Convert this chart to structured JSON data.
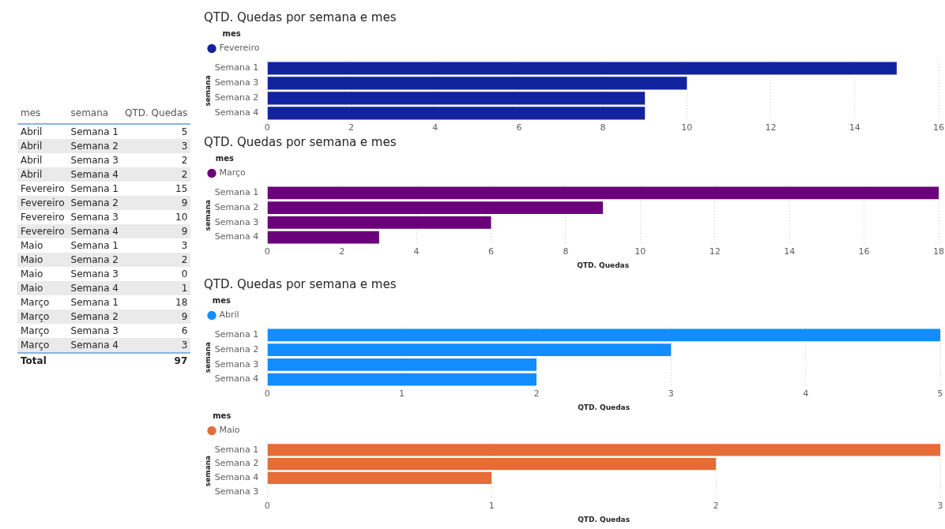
{
  "chart_data": [
    {
      "type": "other",
      "annotations": [
        "mes",
        "semana",
        "QTD. Quedas",
        "Abril",
        "Semana 1",
        "5",
        "Abril",
        "Semana 2",
        "3",
        "Abril",
        "Semana 3",
        "2",
        "Abril",
        "Semana 4",
        "2",
        "Fevereiro",
        "Semana 1",
        "15",
        "Fevereiro",
        "Semana 2",
        "9",
        "Fevereiro",
        "Semana 3",
        "10",
        "Fevereiro",
        "Semana 4",
        "9",
        "Maio",
        "Semana 1",
        "3",
        "Maio",
        "Semana 2",
        "2",
        "Maio",
        "Semana 3",
        "0",
        "Maio",
        "Semana 4",
        "1",
        "Março",
        "Semana 1",
        "18",
        "Março",
        "Semana 2",
        "9",
        "Março",
        "Semana 3",
        "6",
        "Março",
        "Semana 4",
        "3",
        "Total",
        "97"
      ]
    },
    {
      "type": "bar",
      "orientation": "horizontal",
      "title": "QTD. Quedas por semana e mes",
      "ylabel": "semana",
      "legend_title": "mes",
      "legend": "top left",
      "grid": "x",
      "categories": [
        "Semana 1",
        "Semana 3",
        "Semana 2",
        "Semana 4"
      ],
      "series": [
        {
          "name": "Fevereiro",
          "color": "#12239e",
          "values": [
            15,
            10,
            9,
            9
          ]
        }
      ],
      "xlim": [
        0,
        16
      ],
      "xticks": [
        0,
        2,
        4,
        6,
        8,
        10,
        12,
        14,
        16
      ]
    },
    {
      "type": "bar",
      "orientation": "horizontal",
      "title": "QTD. Quedas por semana e mes",
      "xlabel": "QTD. Quedas",
      "ylabel": "semana",
      "legend_title": "mes",
      "legend": "top left",
      "grid": "x",
      "categories": [
        "Semana 1",
        "Semana 2",
        "Semana 3",
        "Semana 4"
      ],
      "series": [
        {
          "name": "Março",
          "color": "#6b007b",
          "values": [
            18,
            9,
            6,
            3
          ]
        }
      ],
      "xlim": [
        0,
        18
      ],
      "xticks": [
        0,
        2,
        4,
        6,
        8,
        10,
        12,
        14,
        16,
        18
      ]
    },
    {
      "type": "bar",
      "orientation": "horizontal",
      "title": "QTD. Quedas por semana e mes",
      "xlabel": "QTD. Quedas",
      "ylabel": "semana",
      "legend_title": "mes",
      "legend": "top left",
      "grid": "x",
      "categories": [
        "Semana 1",
        "Semana 2",
        "Semana 3",
        "Semana 4"
      ],
      "series": [
        {
          "name": "Abril",
          "color": "#118dff",
          "values": [
            5,
            3,
            2,
            2
          ]
        }
      ],
      "xlim": [
        0,
        5
      ],
      "xticks": [
        0,
        1,
        2,
        3,
        4,
        5
      ]
    },
    {
      "type": "bar",
      "orientation": "horizontal",
      "xlabel": "QTD. Quedas",
      "ylabel": "semana",
      "legend_title": "mes",
      "legend": "top left",
      "grid": "x",
      "categories": [
        "Semana 1",
        "Semana 2",
        "Semana 4",
        "Semana 3"
      ],
      "series": [
        {
          "name": "Maio",
          "color": "#e66c37",
          "values": [
            3,
            2,
            1,
            0
          ]
        }
      ],
      "xlim": [
        0,
        3
      ],
      "xticks": [
        0,
        1,
        2,
        3
      ]
    }
  ]
}
